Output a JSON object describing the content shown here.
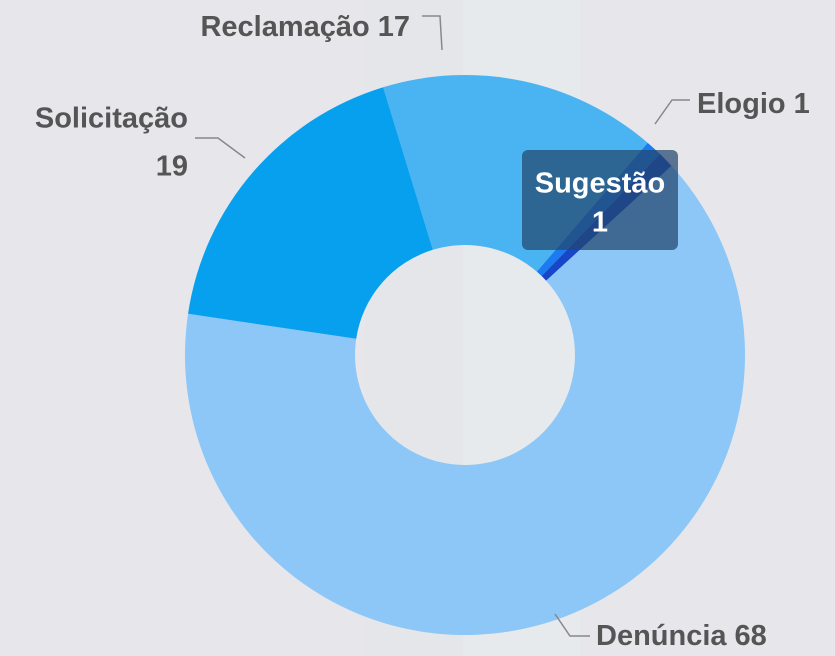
{
  "chart_data": {
    "type": "donut",
    "categories": [
      "Reclamação",
      "Elogio",
      "Sugestão",
      "Denúncia",
      "Solicitação"
    ],
    "values": [
      17,
      1,
      1,
      68,
      19
    ],
    "colors": [
      "#4ab3f2",
      "#1a7cf0",
      "#1746c9",
      "#8cc7f7",
      "#07a0ef"
    ]
  }
}
